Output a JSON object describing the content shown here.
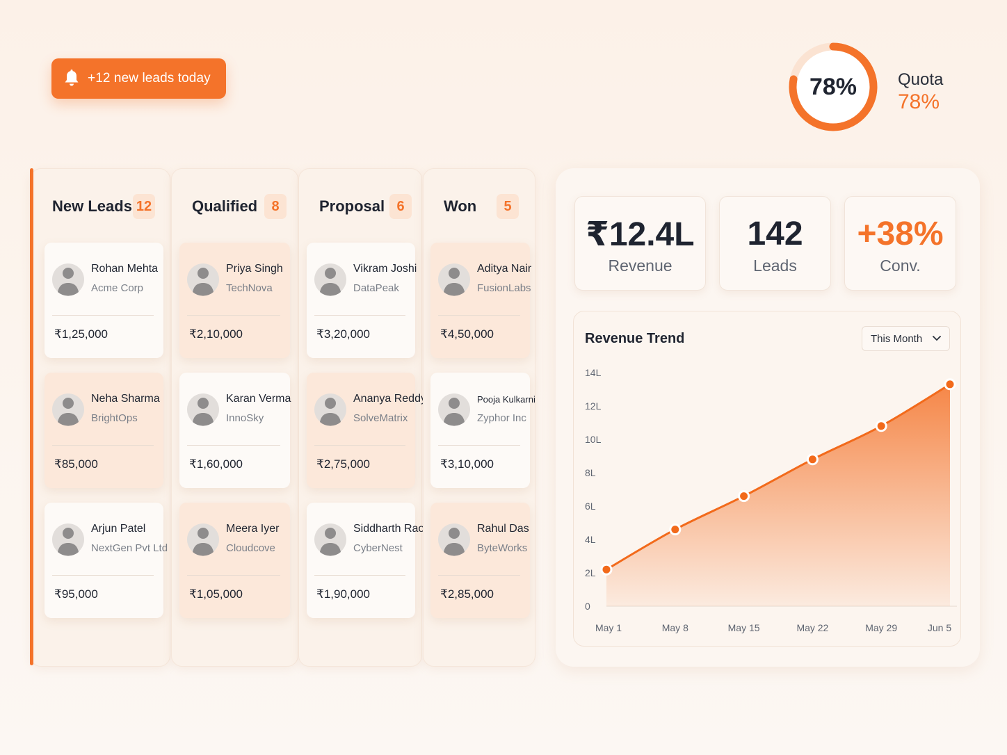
{
  "notification": {
    "label": "+12 new leads today",
    "icon": "bell-icon"
  },
  "quota": {
    "ring_text": "78%",
    "label": "Quota",
    "value": "78%",
    "progress": 0.78
  },
  "colors": {
    "accent": "#F4732A",
    "accent_light": "#FCE4D3",
    "card_tint": "#FCE8DA"
  },
  "kanban": {
    "columns": [
      {
        "title": "New Leads",
        "count": "12",
        "cards": [
          {
            "name": "Rohan Mehta",
            "company": "Acme Corp",
            "amount": "₹1,25,000"
          },
          {
            "name": "Neha Sharma",
            "company": "BrightOps",
            "amount": "₹85,000"
          },
          {
            "name": "Arjun Patel",
            "company": "NextGen Pvt Ltd",
            "amount": "₹95,000"
          }
        ]
      },
      {
        "title": "Qualified",
        "count": "8",
        "cards": [
          {
            "name": "Priya Singh",
            "company": "TechNova",
            "amount": "₹2,10,000"
          },
          {
            "name": "Karan Verma",
            "company": "InnoSky",
            "amount": "₹1,60,000"
          },
          {
            "name": "Meera Iyer",
            "company": "Cloudcove",
            "amount": "₹1,05,000"
          }
        ]
      },
      {
        "title": "Proposal",
        "count": "6",
        "cards": [
          {
            "name": "Vikram Joshi",
            "company": "DataPeak",
            "amount": "₹3,20,000"
          },
          {
            "name": "Ananya Reddy",
            "company": "SolveMatrix",
            "amount": "₹2,75,000"
          },
          {
            "name": "Siddharth Rao",
            "company": "CyberNest",
            "amount": "₹1,90,000"
          }
        ]
      },
      {
        "title": "Won",
        "count": "5",
        "cards": [
          {
            "name": "Aditya Nair",
            "company": "FusionLabs",
            "amount": "₹4,50,000"
          },
          {
            "name": "Pooja Kulkarni",
            "company": "Zyphor Inc",
            "amount": "₹3,10,000"
          },
          {
            "name": "Rahul Das",
            "company": "ByteWorks",
            "amount": "₹2,85,000"
          }
        ]
      }
    ]
  },
  "stats": [
    {
      "value": "₹12.4L",
      "label": "Revenue"
    },
    {
      "value": "142",
      "label": "Leads"
    },
    {
      "value": "+38%",
      "label": "Conv."
    }
  ],
  "revenue_trend": {
    "title": "Revenue Trend",
    "period": "This Month"
  },
  "chart_data": {
    "type": "area",
    "title": "Revenue Trend",
    "x": [
      "May 1",
      "May 8",
      "May 15",
      "May 22",
      "May 29",
      "Jun 5"
    ],
    "y_ticks": [
      "0",
      "2L",
      "4L",
      "6L",
      "8L",
      "10L",
      "12L",
      "14L"
    ],
    "ylim": [
      0,
      14
    ],
    "series": [
      {
        "values": [
          2.2,
          4.6,
          6.6,
          8.8,
          10.8,
          13.3
        ]
      }
    ],
    "grid": false
  }
}
